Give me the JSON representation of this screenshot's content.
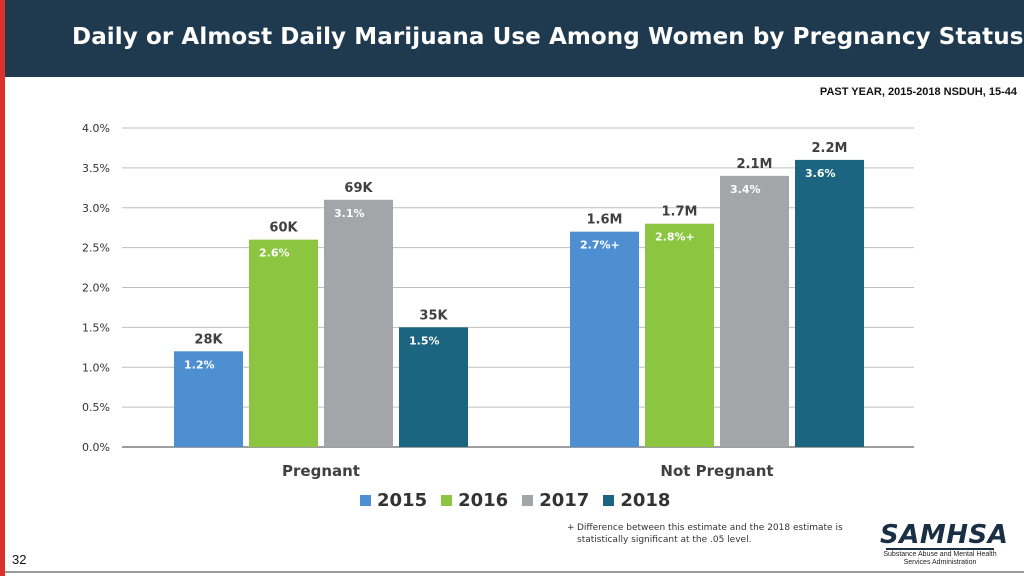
{
  "slide": {
    "title": "Daily or Almost Daily Marijuana Use Among Women by Pregnancy Status",
    "subtitle": "PAST YEAR, 2015-2018 NSDUH, 15-44",
    "page_number": "32",
    "footnote_marker": "+",
    "footnote": "Difference between this estimate and the 2018 estimate is statistically significant at the .05 level.",
    "logo": {
      "name": "SAMHSA",
      "tagline_line1": "Substance Abuse and Mental Health",
      "tagline_line2": "Services Administration"
    }
  },
  "chart_data": {
    "type": "bar",
    "title": "Daily or Almost Daily Marijuana Use Among Women by Pregnancy Status",
    "xlabel": "",
    "ylabel": "",
    "ylim": [
      0,
      4.0
    ],
    "y_ticks": [
      "0.0%",
      "0.5%",
      "1.0%",
      "1.5%",
      "2.0%",
      "2.5%",
      "3.0%",
      "3.5%",
      "4.0%"
    ],
    "grid": true,
    "categories": [
      "Pregnant",
      "Not Pregnant"
    ],
    "series": [
      {
        "name": "2015",
        "color": "#4e8fd2",
        "values": [
          1.2,
          2.7
        ],
        "value_labels": [
          "1.2%",
          "2.7%+"
        ],
        "count_labels": [
          "28K",
          "1.6M"
        ]
      },
      {
        "name": "2016",
        "color": "#8cc540",
        "values": [
          2.6,
          2.8
        ],
        "value_labels": [
          "2.6%",
          "2.8%+"
        ],
        "count_labels": [
          "60K",
          "1.7M"
        ]
      },
      {
        "name": "2017",
        "color": "#a3a5a8",
        "values": [
          3.1,
          3.4
        ],
        "value_labels": [
          "3.1%",
          "3.4%"
        ],
        "count_labels": [
          "69K",
          "2.1M"
        ]
      },
      {
        "name": "2018",
        "color": "#1c6580",
        "values": [
          1.5,
          3.6
        ],
        "value_labels": [
          "1.5%",
          "3.6%"
        ],
        "count_labels": [
          "35K",
          "2.2M"
        ]
      }
    ],
    "legend": [
      "2015",
      "2016",
      "2017",
      "2018"
    ],
    "legend_position": "bottom"
  }
}
